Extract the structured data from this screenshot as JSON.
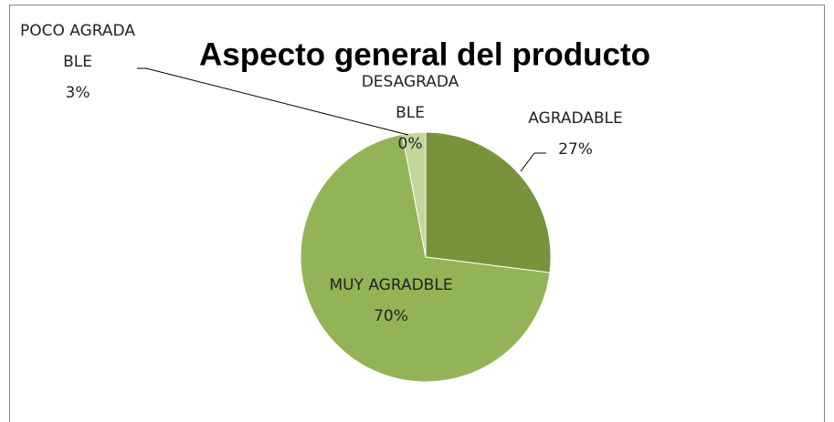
{
  "chart_data": {
    "type": "pie",
    "title": "Aspecto general del producto",
    "categories": [
      "AGRADABLE",
      "MUY AGRADBLE",
      "POCO AGRADABLE",
      "DESAGRADABLE"
    ],
    "values": [
      27,
      70,
      3,
      0
    ],
    "value_labels": [
      "27%",
      "70%",
      "3%",
      "0%"
    ],
    "colors": [
      "#77933c",
      "#93b456",
      "#c3d69b",
      "#d7e4bd"
    ]
  }
}
